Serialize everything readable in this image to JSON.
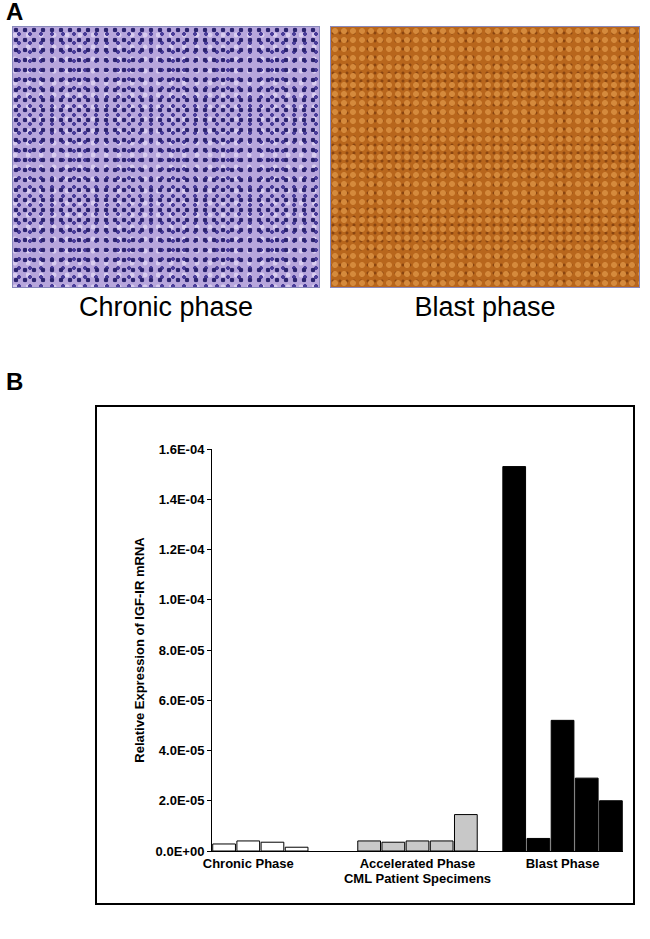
{
  "panel_a": {
    "label": "A",
    "images": [
      {
        "caption": "Chronic phase"
      },
      {
        "caption": "Blast phase"
      }
    ]
  },
  "panel_b": {
    "label": "B"
  },
  "chart_data": {
    "type": "bar",
    "x_label": "CML Patient Specimens",
    "y_label": "Relative Expression of IGF-IR mRNA",
    "categories": [
      null,
      "Chronic Phase",
      null,
      null,
      null,
      null,
      null,
      null,
      "Accelerated Phase",
      null,
      null,
      null,
      null,
      null,
      "Blast Phase",
      null,
      null
    ],
    "values": [
      2.8e-06,
      4e-06,
      3.5e-06,
      1.5e-06,
      null,
      null,
      4e-06,
      3.5e-06,
      4e-06,
      4e-06,
      1.45e-05,
      null,
      0.000153,
      5e-06,
      5.2e-05,
      2.9e-05,
      2e-05
    ],
    "colors": [
      "#ffffff",
      "#ffffff",
      "#ffffff",
      "#ffffff",
      null,
      null,
      "#c8c8c8",
      "#c8c8c8",
      "#c8c8c8",
      "#c8c8c8",
      "#c8c8c8",
      null,
      "#000000",
      "#000000",
      "#000000",
      "#000000",
      "#000000"
    ],
    "ylim": [
      0,
      0.00016
    ],
    "yticks": [
      {
        "value": 0,
        "label": "0.0E+00"
      },
      {
        "value": 2e-05,
        "label": "2.0E-05"
      },
      {
        "value": 4e-05,
        "label": "4.0E-05"
      },
      {
        "value": 6e-05,
        "label": "6.0E-05"
      },
      {
        "value": 8e-05,
        "label": "8.0E-05"
      },
      {
        "value": 0.0001,
        "label": "1.0E-04"
      },
      {
        "value": 0.00012,
        "label": "1.2E-04"
      },
      {
        "value": 0.00014,
        "label": "1.4E-04"
      },
      {
        "value": 0.00016,
        "label": "1.6E-04"
      }
    ],
    "grid": false
  }
}
